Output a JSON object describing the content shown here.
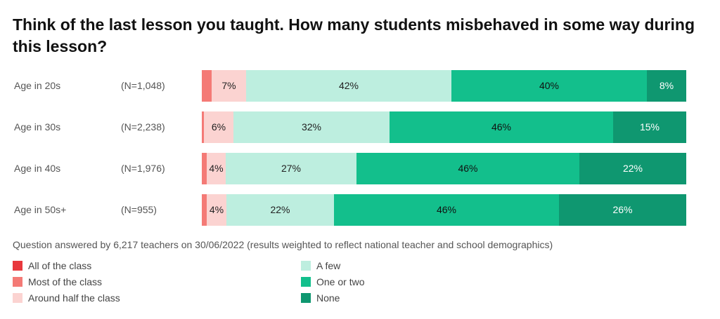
{
  "chart_data": {
    "type": "bar",
    "orientation": "horizontal",
    "stacked": true,
    "title": "Think of the last lesson you taught. How many students misbehaved in some way during this lesson?",
    "note": "Question answered by 6,217 teachers on 30/06/2022 (results weighted to reflect national teacher and school demographics)",
    "categories": [
      "Age in 20s",
      "Age in 30s",
      "Age in 40s",
      "Age in 50s+"
    ],
    "sample_sizes": [
      "(N=1,048)",
      "(N=2,238)",
      "(N=1,976)",
      "(N=955)"
    ],
    "xlim": [
      0,
      100
    ],
    "grid": false,
    "legend_position": "bottom",
    "series": [
      {
        "name": "All of the class",
        "color": "#e8383d",
        "values": [
          0,
          0,
          0,
          0
        ],
        "labels": [
          "",
          "",
          "",
          ""
        ]
      },
      {
        "name": "Most of the class",
        "color": "#f47a76",
        "values": [
          2,
          0.5,
          1,
          1
        ],
        "labels": [
          "",
          "",
          "",
          ""
        ]
      },
      {
        "name": "Around half the class",
        "color": "#fbd3d1",
        "values": [
          7,
          6,
          4,
          4
        ],
        "labels": [
          "7%",
          "6%",
          "4%",
          "4%"
        ]
      },
      {
        "name": "A few",
        "color": "#bdeedf",
        "values": [
          42,
          32,
          27,
          22
        ],
        "labels": [
          "42%",
          "32%",
          "27%",
          "22%"
        ]
      },
      {
        "name": "One or two",
        "color": "#13bf8c",
        "values": [
          40,
          46,
          46,
          46
        ],
        "labels": [
          "40%",
          "46%",
          "46%",
          "46%"
        ]
      },
      {
        "name": "None",
        "color": "#0f9770",
        "values": [
          8,
          15,
          22,
          26
        ],
        "labels": [
          "8%",
          "15%",
          "22%",
          "26%"
        ]
      }
    ]
  }
}
